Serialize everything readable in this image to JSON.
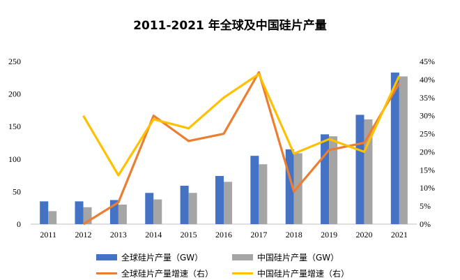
{
  "title": "2011-2021 年全球及中国硅片产量",
  "chart_data": {
    "type": "bar",
    "categories": [
      "2011",
      "2012",
      "2013",
      "2014",
      "2015",
      "2016",
      "2017",
      "2018",
      "2019",
      "2020",
      "2021"
    ],
    "series": [
      {
        "name": "全球硅片产量（GW）",
        "type": "bar",
        "axis": "left",
        "color": "#4472C4",
        "values": [
          35,
          35,
          37,
          48,
          59,
          74,
          105,
          115,
          138,
          168,
          233
        ]
      },
      {
        "name": "中国硅片产量（GW）",
        "type": "bar",
        "axis": "left",
        "color": "#A5A5A5",
        "values": [
          20,
          26,
          30,
          38,
          48,
          65,
          92,
          109,
          135,
          161,
          227
        ]
      },
      {
        "name": "全球硅片产量增速（右）",
        "type": "line",
        "axis": "right",
        "color": "#ED7D31",
        "values": [
          null,
          0,
          6,
          30,
          23,
          25,
          42,
          9,
          20.5,
          22.5,
          39
        ]
      },
      {
        "name": "中国硅片产量增速（右）",
        "type": "line",
        "axis": "right",
        "color": "#FFC000",
        "values": [
          null,
          30,
          13.5,
          29,
          26.5,
          35,
          41.5,
          19.5,
          23.5,
          20,
          41
        ]
      }
    ],
    "y_left": {
      "min": 0,
      "max": 250,
      "ticks": [
        0,
        50,
        100,
        150,
        200,
        250
      ]
    },
    "y_right": {
      "min": 0,
      "max": 45,
      "ticks": [
        "0%",
        "5%",
        "10%",
        "15%",
        "20%",
        "25%",
        "30%",
        "35%",
        "40%",
        "45%"
      ]
    },
    "legend_position": "bottom"
  }
}
